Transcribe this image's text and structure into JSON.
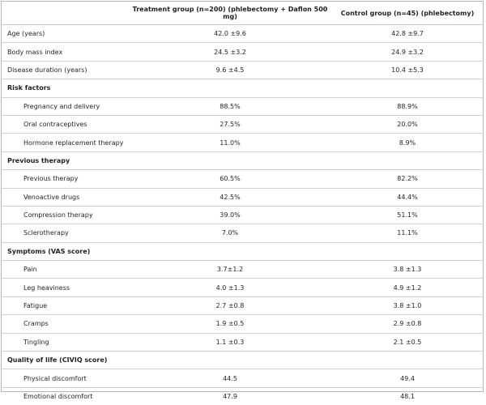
{
  "header": {
    "col1": "",
    "col2": "Treatment group (n=200) (phlebectomy + Daflon 500 mg)",
    "col3": "Control group (n=45) (phlebectomy)"
  },
  "rows": [
    {
      "type": "row",
      "label": "Age (years)",
      "treatment": "42.0 ±9.6",
      "control": "42.8 ±9.7"
    },
    {
      "type": "row",
      "label": "Body mass index",
      "treatment": "24.5 ±3.2",
      "control": "24.9 ±3.2"
    },
    {
      "type": "row",
      "label": "Disease duration (years)",
      "treatment": "9.6 ±4.5",
      "control": "10.4 ±5.3"
    },
    {
      "type": "section",
      "label": "Risk factors"
    },
    {
      "type": "sub",
      "label": "Pregnancy and delivery",
      "treatment": "88.5%",
      "control": "88.9%"
    },
    {
      "type": "sub",
      "label": "Oral contraceptives",
      "treatment": "27.5%",
      "control": "20.0%"
    },
    {
      "type": "sub",
      "label": "Hormone replacement therapy",
      "treatment": "11.0%",
      "control": "8.9%"
    },
    {
      "type": "section",
      "label": "Previous therapy"
    },
    {
      "type": "sub",
      "label": "Previous therapy",
      "treatment": "60.5%",
      "control": "82.2%"
    },
    {
      "type": "sub",
      "label": "Venoactive drugs",
      "treatment": "42.5%",
      "control": "44.4%"
    },
    {
      "type": "sub",
      "label": "Compression therapy",
      "treatment": "39.0%",
      "control": "51.1%"
    },
    {
      "type": "sub",
      "label": "Sclerotherapy",
      "treatment": "7.0%",
      "control": "11.1%"
    },
    {
      "type": "section",
      "label": "Symptoms (VAS score)"
    },
    {
      "type": "sub",
      "label": "Pain",
      "treatment": "3.7±1.2",
      "control": "3.8 ±1.3"
    },
    {
      "type": "sub",
      "label": "Leg heaviness",
      "treatment": "4.0 ±1.3",
      "control": "4.9 ±1.2"
    },
    {
      "type": "sub",
      "label": "Fatigue",
      "treatment": "2.7 ±0.8",
      "control": "3.8 ±1.0"
    },
    {
      "type": "sub",
      "label": "Cramps",
      "treatment": "1.9 ±0.5",
      "control": "2.9 ±0.8"
    },
    {
      "type": "sub",
      "label": "Tingling",
      "treatment": "1.1 ±0.3",
      "control": "2.1 ±0.5"
    },
    {
      "type": "section",
      "label": "Quality of life (CIVIQ score)"
    },
    {
      "type": "sub",
      "label": "Physical discomfort",
      "treatment": "44.5",
      "control": "49.4"
    },
    {
      "type": "sub",
      "label": "Emotional discomfort",
      "treatment": "47.9",
      "control": "48.1"
    }
  ]
}
